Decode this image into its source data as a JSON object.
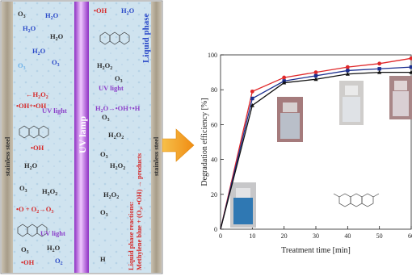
{
  "reactor": {
    "left_chamber": [
      {
        "text": "O",
        "sub": "3",
        "color": "#2b2b2b"
      },
      {
        "text": "H",
        "sub": "2",
        "tail": "O",
        "color": "#2a49c8"
      },
      {
        "text": "H",
        "sub": "2",
        "tail": "O",
        "color": "#2a49c8"
      },
      {
        "text": "H",
        "sub": "2",
        "tail": "O",
        "color": "#2b2b2b"
      },
      {
        "text": "H",
        "sub": "2",
        "tail": "O",
        "color": "#2a49c8"
      },
      {
        "text": "O",
        "sub": "3",
        "color": "#2a49c8"
      },
      {
        "text": "O",
        "sub": "3",
        "color": "#6fb2e8"
      },
      {
        "text": "←H",
        "sub": "2",
        "tail": "O",
        "tail_sub": "2",
        "color": "#d62828"
      },
      {
        "text": "•OH+•OH",
        "color": "#d62828"
      },
      {
        "text": "UV light",
        "color": "#8b3fc9"
      },
      {
        "text": "•OH",
        "color": "#d62828"
      },
      {
        "text": "H",
        "sub": "2",
        "tail": "O",
        "color": "#2b2b2b"
      },
      {
        "text": "O",
        "sub": "3",
        "color": "#2b2b2b"
      },
      {
        "text": "H",
        "sub": "2",
        "tail": "O",
        "tail_sub": "2",
        "color": "#2b2b2b"
      },
      {
        "text": "•O + O",
        "sub": "2",
        "tail": "→O",
        "tail_sub": "3",
        "color": "#d62828"
      },
      {
        "text": "UV light",
        "color": "#8b3fc9"
      },
      {
        "text": "O",
        "sub": "3",
        "color": "#2b2b2b"
      },
      {
        "text": "H",
        "sub": "2",
        "tail": "O",
        "color": "#2b2b2b"
      },
      {
        "text": "•OH",
        "color": "#d62828"
      },
      {
        "text": "O",
        "sub": "2",
        "color": "#2a49c8"
      }
    ],
    "right_chamber": [
      {
        "text": "•OH",
        "color": "#d62828"
      },
      {
        "text": "H",
        "sub": "2",
        "tail": "O",
        "color": "#2a49c8"
      },
      {
        "text": "O",
        "sub": "3",
        "color": "#2b2b2b"
      },
      {
        "text": "H",
        "sub": "2",
        "tail": "O",
        "tail_sub": "2",
        "color": "#2b2b2b"
      },
      {
        "text": "UV light",
        "color": "#8b3fc9"
      },
      {
        "text": "O",
        "sub": "3",
        "color": "#2b2b2b"
      },
      {
        "text": "H",
        "sub": "2",
        "tail": "O→•OH+•H",
        "color": "#8b3fc9"
      },
      {
        "text": "H",
        "sub": "2",
        "tail": "O",
        "tail_sub": "2",
        "color": "#2b2b2b"
      },
      {
        "text": "O",
        "sub": "3",
        "color": "#2b2b2b"
      },
      {
        "text": "H",
        "sub": "2",
        "tail": "O",
        "tail_sub": "2",
        "color": "#2b2b2b"
      },
      {
        "text": "H",
        "sub": "2",
        "tail": "O",
        "tail_sub": "2",
        "color": "#2b2b2b"
      },
      {
        "text": "O",
        "sub": "3",
        "color": "#2b2b2b"
      },
      {
        "text": "H",
        "color": "#2b2b2b"
      }
    ],
    "lamp_label": "UV lamp",
    "wall_label_left": "stainless steel",
    "wall_label_right": "stainless steel",
    "phase_label": "Liquid phase",
    "reaction_line1": "Liquid phase reactions:",
    "reaction_line2": "Methylene blue + (O₃, •OH) → products"
  },
  "chart_data": {
    "type": "line",
    "xlabel": "Treatment time [min]",
    "ylabel": "Degradation efficiency [%]",
    "xlim": [
      0,
      60
    ],
    "ylim": [
      0,
      100
    ],
    "xticks": [
      0,
      10,
      20,
      30,
      40,
      50,
      60
    ],
    "yticks": [
      0,
      20,
      40,
      60,
      80,
      100
    ],
    "x": [
      0,
      10,
      20,
      30,
      40,
      50,
      60
    ],
    "series": [
      {
        "color": "#e0282a",
        "marker": "circle",
        "values": [
          0,
          79,
          87,
          90,
          93,
          95,
          98
        ]
      },
      {
        "color": "#1c2f8f",
        "marker": "square",
        "values": [
          0,
          75,
          85,
          88,
          91,
          92,
          93
        ]
      },
      {
        "color": "#111111",
        "marker": "triangle",
        "values": [
          0,
          71,
          84,
          86,
          89,
          90,
          90
        ]
      }
    ],
    "grid": false,
    "legend": "none"
  },
  "colors": {
    "arrow": "#f7a41c",
    "lamp": "#b24fd6",
    "steel": "#a89e8c",
    "chamber": "#cfe3ef"
  }
}
